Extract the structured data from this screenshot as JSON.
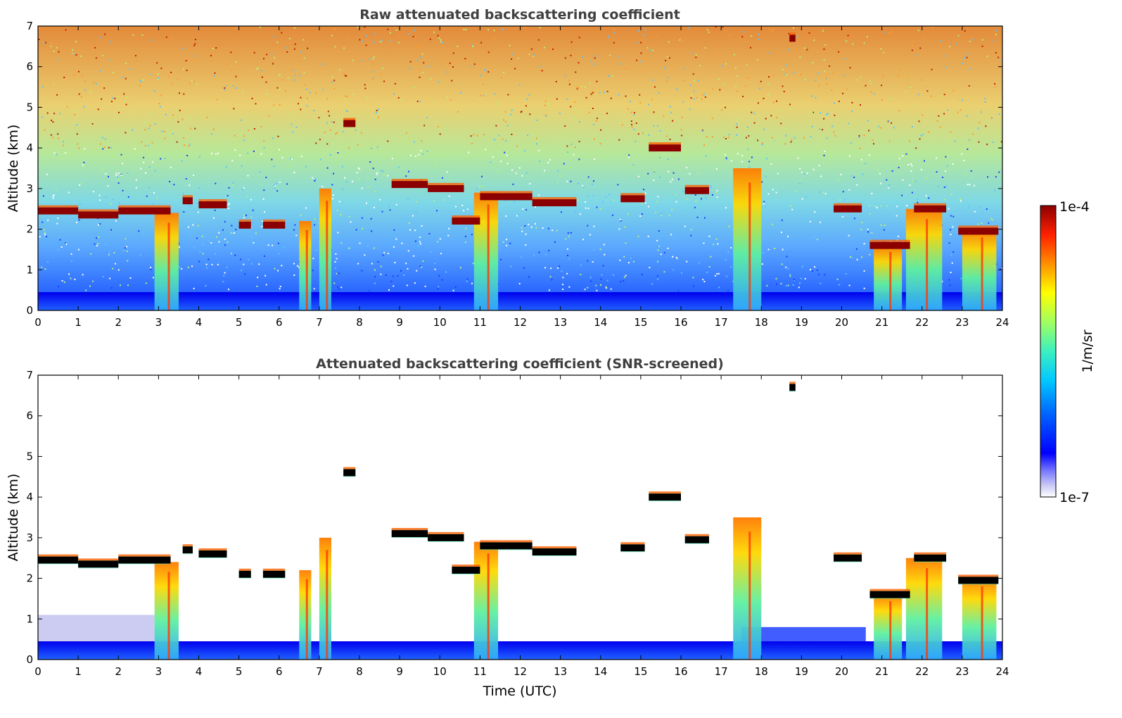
{
  "figure": {
    "colorbar": {
      "label": "1/m/sr",
      "max_label": "1e-4",
      "min_label": "1e-7",
      "scale": "log",
      "colormap": "jet",
      "colors": [
        "#ffffff",
        "#c9c9f5",
        "#7777ff",
        "#0000ff",
        "#0060ff",
        "#00c8ff",
        "#3cf0c0",
        "#a0ff60",
        "#ffff00",
        "#ff9000",
        "#ff2000",
        "#8b0000"
      ]
    },
    "x_ticks": [
      "0",
      "1",
      "2",
      "3",
      "4",
      "5",
      "6",
      "7",
      "8",
      "9",
      "10",
      "11",
      "12",
      "13",
      "14",
      "15",
      "16",
      "17",
      "18",
      "19",
      "20",
      "21",
      "22",
      "23",
      "24"
    ],
    "y_ticks": [
      "0",
      "1",
      "2",
      "3",
      "4",
      "5",
      "6",
      "7"
    ]
  },
  "chart_data": [
    {
      "type": "heatmap",
      "title": "Raw attenuated backscattering coefficient",
      "xlabel": "",
      "ylabel": "Altitude (km)",
      "xlim": [
        0,
        24
      ],
      "ylim": [
        0,
        7
      ],
      "value_range": [
        1e-07,
        0.0001
      ],
      "grid": false,
      "features": {
        "cloud_layers": [
          {
            "t_start": 0.0,
            "t_end": 1.0,
            "altitude": 2.45
          },
          {
            "t_start": 1.0,
            "t_end": 2.0,
            "altitude": 2.35
          },
          {
            "t_start": 2.0,
            "t_end": 3.3,
            "altitude": 2.45
          },
          {
            "t_start": 3.6,
            "t_end": 3.85,
            "altitude": 2.7
          },
          {
            "t_start": 4.0,
            "t_end": 4.7,
            "altitude": 2.6
          },
          {
            "t_start": 5.0,
            "t_end": 5.3,
            "altitude": 2.1
          },
          {
            "t_start": 5.6,
            "t_end": 6.15,
            "altitude": 2.1
          },
          {
            "t_start": 7.6,
            "t_end": 7.9,
            "altitude": 4.6
          },
          {
            "t_start": 8.8,
            "t_end": 9.7,
            "altitude": 3.1
          },
          {
            "t_start": 9.7,
            "t_end": 10.6,
            "altitude": 3.0
          },
          {
            "t_start": 10.3,
            "t_end": 11.0,
            "altitude": 2.2
          },
          {
            "t_start": 11.0,
            "t_end": 12.3,
            "altitude": 2.8
          },
          {
            "t_start": 12.3,
            "t_end": 13.4,
            "altitude": 2.65
          },
          {
            "t_start": 14.5,
            "t_end": 15.1,
            "altitude": 2.75
          },
          {
            "t_start": 15.2,
            "t_end": 16.0,
            "altitude": 4.0
          },
          {
            "t_start": 16.1,
            "t_end": 16.7,
            "altitude": 2.95
          },
          {
            "t_start": 18.7,
            "t_end": 18.85,
            "altitude": 6.7
          },
          {
            "t_start": 19.8,
            "t_end": 20.5,
            "altitude": 2.5
          },
          {
            "t_start": 20.7,
            "t_end": 21.7,
            "altitude": 1.6
          },
          {
            "t_start": 21.8,
            "t_end": 22.6,
            "altitude": 2.5
          },
          {
            "t_start": 22.9,
            "t_end": 23.9,
            "altitude": 1.95
          }
        ],
        "boundary_layer_top_km": 0.45,
        "precipitation_shafts": [
          {
            "t_start": 2.9,
            "t_end": 3.5,
            "top_km": 2.4
          },
          {
            "t_start": 6.5,
            "t_end": 6.8,
            "top_km": 2.2
          },
          {
            "t_start": 7.0,
            "t_end": 7.3,
            "top_km": 3.0
          },
          {
            "t_start": 10.85,
            "t_end": 11.45,
            "top_km": 2.9
          },
          {
            "t_start": 17.3,
            "t_end": 18.0,
            "top_km": 3.5
          },
          {
            "t_start": 20.8,
            "t_end": 21.5,
            "top_km": 1.6
          },
          {
            "t_start": 21.6,
            "t_end": 22.5,
            "top_km": 2.5
          },
          {
            "t_start": 23.0,
            "t_end": 23.85,
            "top_km": 2.0
          }
        ]
      }
    },
    {
      "type": "heatmap",
      "title": "Attenuated backscattering coefficient (SNR-screened)",
      "xlabel": "Time (UTC)",
      "ylabel": "Altitude (km)",
      "xlim": [
        0,
        24
      ],
      "ylim": [
        0,
        7
      ],
      "value_range": [
        1e-07,
        0.0001
      ],
      "grid": false,
      "features": {
        "screened_background": "white",
        "cloud_layers_same_as_raw": true,
        "boundary_layer_top_km": 0.45
      }
    }
  ]
}
